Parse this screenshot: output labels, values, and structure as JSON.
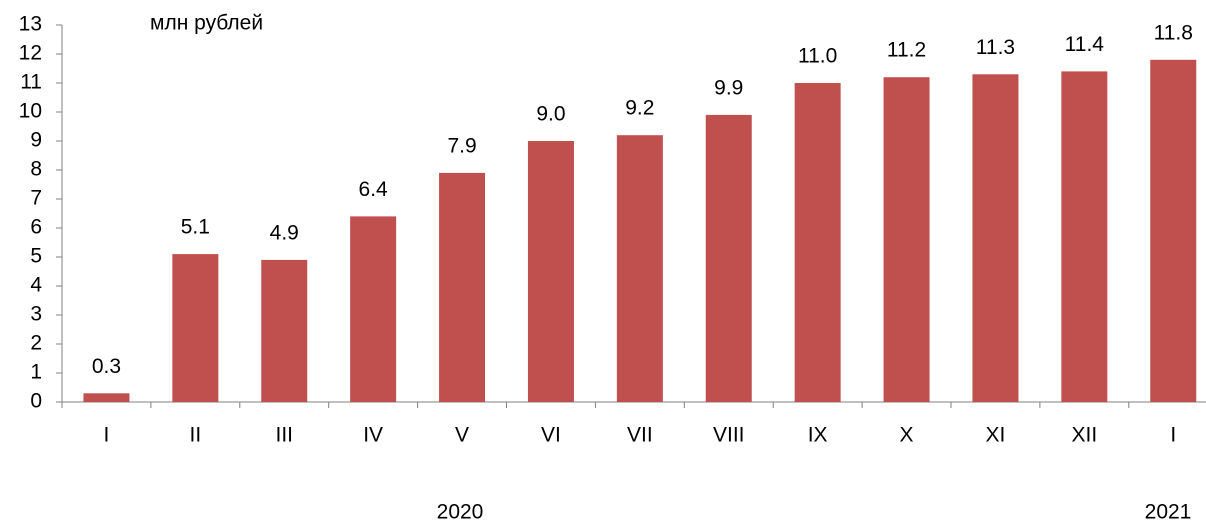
{
  "chart_data": {
    "type": "bar",
    "unit_label": "млн рублей",
    "categories": [
      "I",
      "II",
      "III",
      "IV",
      "V",
      "VI",
      "VII",
      "VIII",
      "IX",
      "X",
      "XI",
      "XII",
      "I"
    ],
    "values": [
      0.3,
      5.1,
      4.9,
      6.4,
      7.9,
      9.0,
      9.2,
      9.9,
      11.0,
      11.2,
      11.3,
      11.4,
      11.8
    ],
    "value_labels": [
      "0.3",
      "5.1",
      "4.9",
      "6.4",
      "7.9",
      "9.0",
      "9.2",
      "9.9",
      "11.0",
      "11.2",
      "11.3",
      "11.4",
      "11.8"
    ],
    "year_labels": [
      "2020",
      "2021"
    ],
    "color": "#c0504d",
    "ylim": [
      0,
      13
    ],
    "yticks": [
      0,
      1,
      2,
      3,
      4,
      5,
      6,
      7,
      8,
      9,
      10,
      11,
      12,
      13
    ],
    "grid": false
  }
}
